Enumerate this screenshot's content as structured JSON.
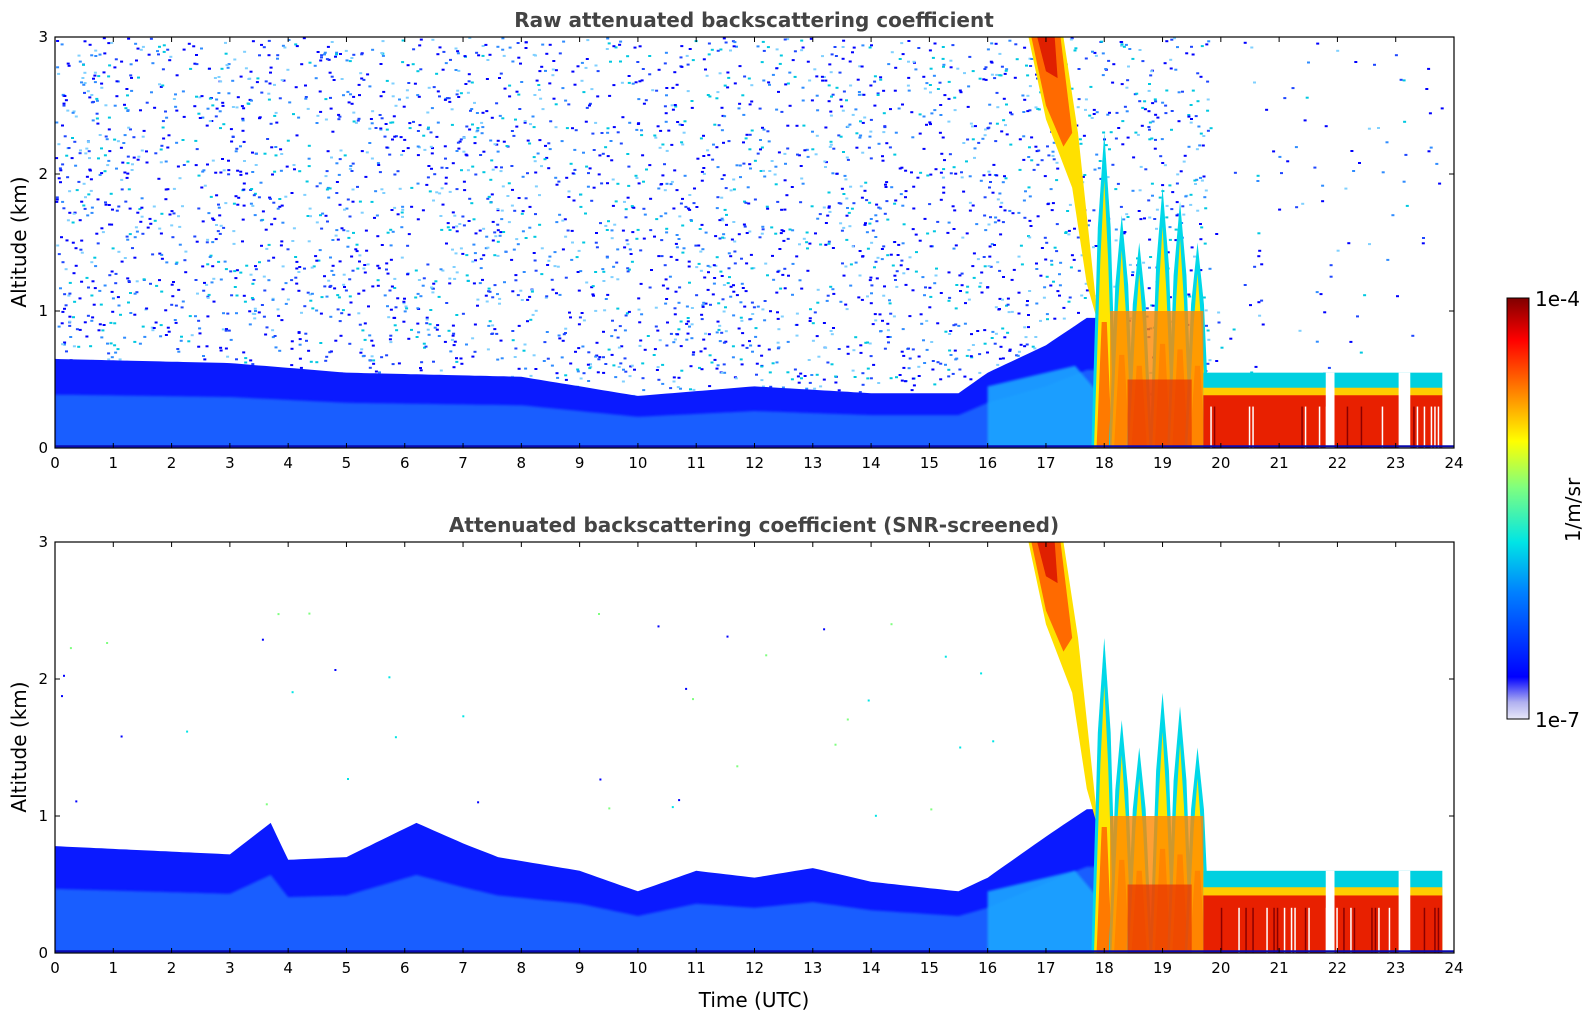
{
  "chart_data": [
    {
      "type": "heatmap",
      "title": "Raw attenuated backscattering coefficient",
      "xlabel": "",
      "ylabel": "Altitude (km)",
      "xlim": [
        0,
        24
      ],
      "ylim": [
        0,
        3
      ],
      "xticks": [
        "0",
        "1",
        "2",
        "3",
        "4",
        "5",
        "6",
        "7",
        "8",
        "9",
        "10",
        "11",
        "12",
        "13",
        "14",
        "15",
        "16",
        "17",
        "18",
        "19",
        "20",
        "21",
        "22",
        "23",
        "24"
      ],
      "yticks": [
        "0",
        "1",
        "2",
        "3"
      ],
      "colormap": "jet",
      "screened": false,
      "features": {
        "boundary_layer_top_km": [
          [
            0,
            0.65
          ],
          [
            3,
            0.62
          ],
          [
            5,
            0.55
          ],
          [
            8,
            0.52
          ],
          [
            10,
            0.38
          ],
          [
            12,
            0.45
          ],
          [
            14,
            0.4
          ],
          [
            15.5,
            0.4
          ],
          [
            16,
            0.55
          ],
          [
            17,
            0.75
          ],
          [
            17.7,
            0.95
          ]
        ],
        "cirrus_fallstreak": {
          "x_start": 16.7,
          "x_end": 17.9,
          "top_km": 3.0,
          "bottom_km": 0.9
        },
        "convective_towers": [
          [
            18.0,
            2.3
          ],
          [
            18.3,
            1.7
          ],
          [
            18.6,
            1.5
          ],
          [
            19.0,
            1.9
          ],
          [
            19.3,
            1.8
          ],
          [
            19.6,
            1.5
          ]
        ],
        "low_cloud_layer": {
          "x_start": 19.7,
          "x_end": 23.8,
          "top_km": 0.55
        }
      }
    },
    {
      "type": "heatmap",
      "title": "Attenuated backscattering coefficient (SNR-screened)",
      "xlabel": "Time (UTC)",
      "ylabel": "Altitude (km)",
      "xlim": [
        0,
        24
      ],
      "ylim": [
        0,
        3
      ],
      "xticks": [
        "0",
        "1",
        "2",
        "3",
        "4",
        "5",
        "6",
        "7",
        "8",
        "9",
        "10",
        "11",
        "12",
        "13",
        "14",
        "15",
        "16",
        "17",
        "18",
        "19",
        "20",
        "21",
        "22",
        "23",
        "24"
      ],
      "yticks": [
        "0",
        "1",
        "2",
        "3"
      ],
      "colormap": "jet",
      "screened": true,
      "features": {
        "boundary_layer_top_km": [
          [
            0,
            0.78
          ],
          [
            3,
            0.72
          ],
          [
            3.7,
            0.95
          ],
          [
            4,
            0.68
          ],
          [
            5,
            0.7
          ],
          [
            6.2,
            0.95
          ],
          [
            7,
            0.8
          ],
          [
            7.6,
            0.7
          ],
          [
            9,
            0.6
          ],
          [
            10,
            0.45
          ],
          [
            11,
            0.6
          ],
          [
            12,
            0.55
          ],
          [
            13,
            0.62
          ],
          [
            14,
            0.52
          ],
          [
            15.5,
            0.45
          ],
          [
            16,
            0.55
          ],
          [
            17,
            0.85
          ],
          [
            17.7,
            1.05
          ]
        ],
        "cirrus_fallstreak": {
          "x_start": 16.7,
          "x_end": 17.9,
          "top_km": 3.0,
          "bottom_km": 0.9
        },
        "convective_towers": [
          [
            18.0,
            2.3
          ],
          [
            18.3,
            1.7
          ],
          [
            18.6,
            1.5
          ],
          [
            19.0,
            1.9
          ],
          [
            19.3,
            1.8
          ],
          [
            19.6,
            1.5
          ]
        ],
        "low_cloud_layer": {
          "x_start": 19.7,
          "x_end": 23.8,
          "top_km": 0.6
        }
      }
    }
  ],
  "colorbar": {
    "label": "1/m/sr",
    "max_label": "1e-4",
    "min_label": "1e-7",
    "scale": "log",
    "range": [
      1e-07,
      0.0001
    ]
  },
  "colors": {
    "jet_stops": [
      "#e8e8f8",
      "#0000ff",
      "#0080ff",
      "#00e5e5",
      "#7fff7f",
      "#ffff00",
      "#ff8000",
      "#ff0000",
      "#800000"
    ]
  }
}
